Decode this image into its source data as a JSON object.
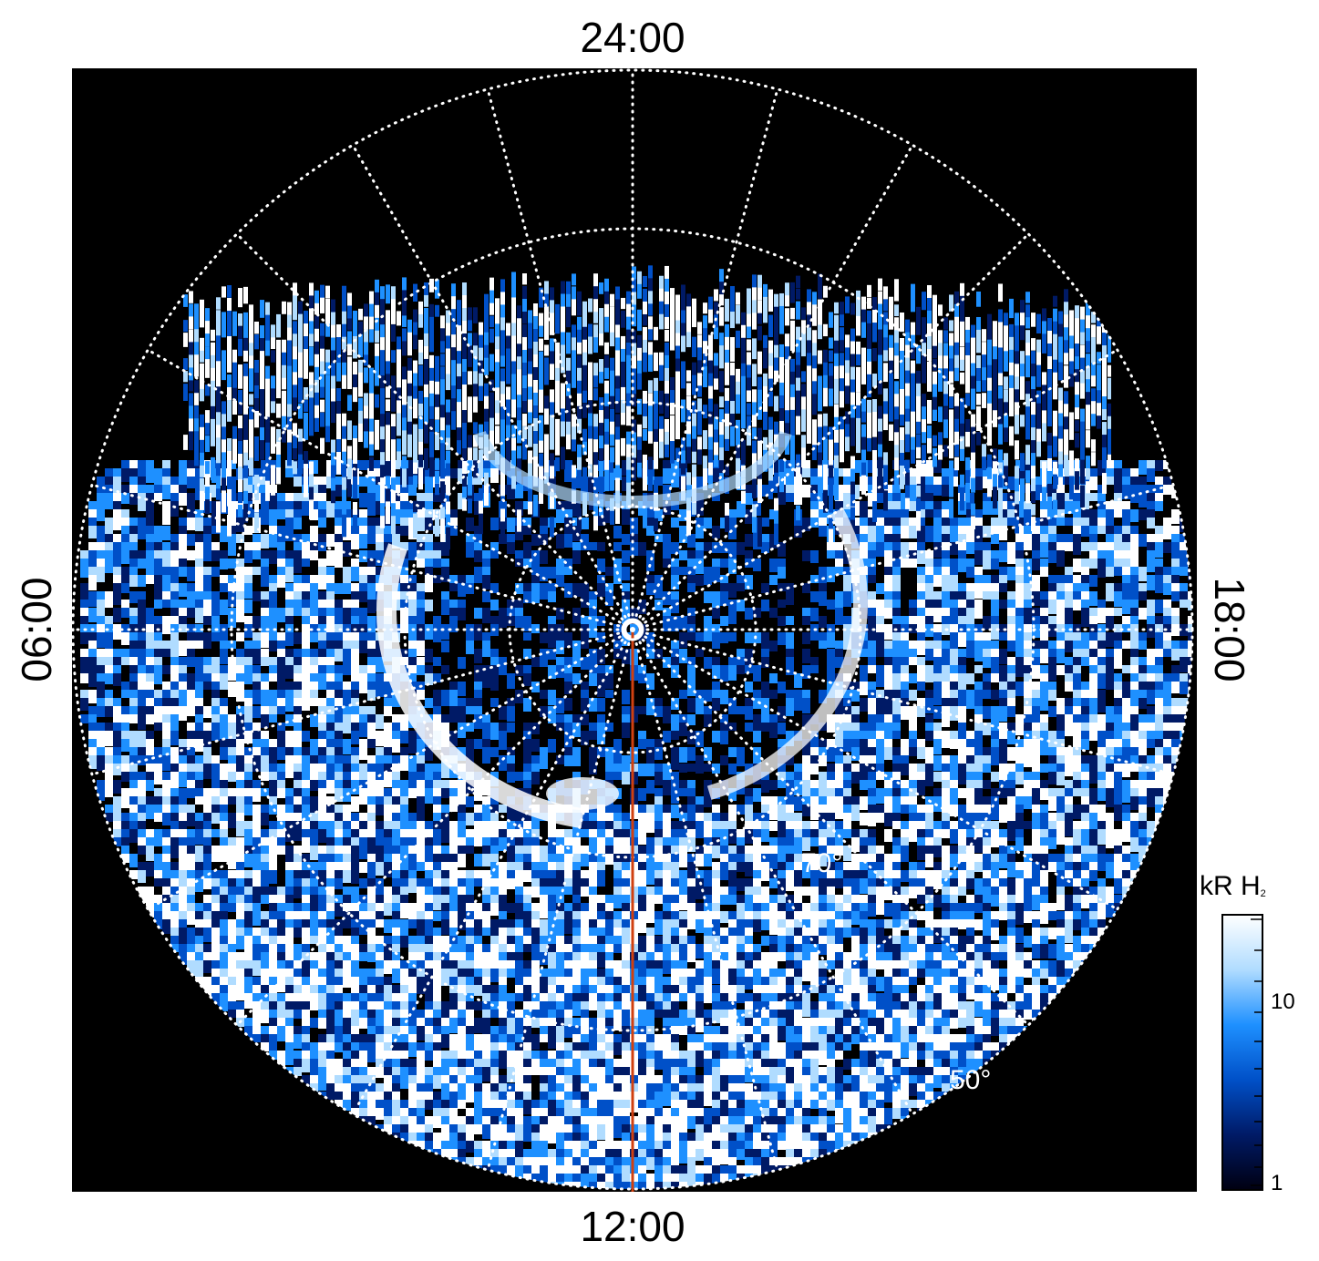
{
  "local_time_labels": {
    "top": "24:00",
    "bottom": "12:00",
    "left": "06:00",
    "right": "18:00"
  },
  "latitude_labels": {
    "inner": "70°",
    "outer": "50°"
  },
  "colorbar": {
    "title_main": "kR H",
    "title_sub": "2",
    "tick_labels": [
      "10",
      "1"
    ],
    "scale": "log",
    "range": [
      1,
      25
    ],
    "colors": [
      "#000011",
      "#001a66",
      "#0050c8",
      "#1e90ff",
      "#b0dcff",
      "#ffffff"
    ]
  },
  "colors": {
    "background": "#000000",
    "grid": "#ffffff",
    "meridian_line": "#d04010",
    "emission_bright": "#ffffff",
    "emission_mid": "#1e90ff",
    "emission_dark": "#001a66"
  },
  "grid": {
    "style": "dotted",
    "latitude_circles_deg": [
      90,
      80,
      70,
      60,
      50
    ],
    "meridian_step_hours": 1
  }
}
